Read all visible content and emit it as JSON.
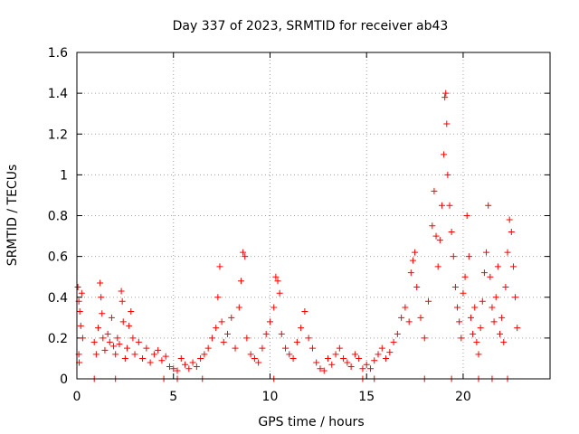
{
  "chart_data": {
    "type": "scatter",
    "title": "Day 337 of 2023, SRMTID for receiver ab43",
    "xlabel": "GPS time / hours",
    "ylabel": "SRMTID / TECUs",
    "xlim": [
      0,
      24.5
    ],
    "ylim": [
      0,
      1.6
    ],
    "xticks": [
      0,
      5,
      10,
      15,
      20
    ],
    "xtick_labels": [
      "0",
      "5",
      "10",
      "15",
      "20"
    ],
    "yticks": [
      0,
      0.2,
      0.4,
      0.6,
      0.8,
      1,
      1.2,
      1.4,
      1.6
    ],
    "ytick_labels": [
      "0",
      "0.2",
      "0.4",
      "0.6",
      "0.8",
      "1",
      "1.2",
      "1.4",
      "1.6"
    ],
    "grid": true,
    "marker": "plus",
    "color": "#ff0000",
    "series": [
      {
        "name": "SRMTID",
        "points": [
          [
            0.05,
            0.45
          ],
          [
            0.1,
            0.38
          ],
          [
            0.15,
            0.33
          ],
          [
            0.2,
            0.26
          ],
          [
            0.25,
            0.42
          ],
          [
            0.3,
            0.2
          ],
          [
            0.1,
            0.12
          ],
          [
            0.12,
            0.08
          ],
          [
            0.9,
            0.18
          ],
          [
            1.0,
            0.12
          ],
          [
            1.1,
            0.25
          ],
          [
            1.2,
            0.47
          ],
          [
            1.25,
            0.4
          ],
          [
            1.3,
            0.32
          ],
          [
            1.35,
            0.2
          ],
          [
            1.45,
            0.14
          ],
          [
            1.6,
            0.22
          ],
          [
            1.7,
            0.18
          ],
          [
            1.8,
            0.3
          ],
          [
            1.9,
            0.16
          ],
          [
            2.0,
            0.12
          ],
          [
            2.1,
            0.2
          ],
          [
            2.2,
            0.17
          ],
          [
            2.3,
            0.43
          ],
          [
            2.35,
            0.38
          ],
          [
            2.4,
            0.28
          ],
          [
            2.5,
            0.1
          ],
          [
            2.6,
            0.15
          ],
          [
            2.7,
            0.26
          ],
          [
            2.8,
            0.33
          ],
          [
            2.9,
            0.2
          ],
          [
            3.0,
            0.12
          ],
          [
            3.2,
            0.18
          ],
          [
            3.4,
            0.1
          ],
          [
            3.6,
            0.15
          ],
          [
            3.8,
            0.08
          ],
          [
            4.0,
            0.12
          ],
          [
            4.2,
            0.14
          ],
          [
            4.4,
            0.09
          ],
          [
            4.6,
            0.11
          ],
          [
            4.8,
            0.06
          ],
          [
            5.0,
            0.05
          ],
          [
            5.2,
            0.04
          ],
          [
            5.4,
            0.1
          ],
          [
            5.6,
            0.07
          ],
          [
            5.8,
            0.05
          ],
          [
            6.0,
            0.08
          ],
          [
            6.2,
            0.06
          ],
          [
            6.4,
            0.1
          ],
          [
            6.6,
            0.12
          ],
          [
            6.8,
            0.15
          ],
          [
            7.0,
            0.2
          ],
          [
            7.2,
            0.25
          ],
          [
            7.3,
            0.4
          ],
          [
            7.4,
            0.55
          ],
          [
            7.5,
            0.28
          ],
          [
            7.6,
            0.18
          ],
          [
            7.8,
            0.22
          ],
          [
            8.0,
            0.3
          ],
          [
            8.2,
            0.15
          ],
          [
            8.4,
            0.35
          ],
          [
            8.5,
            0.48
          ],
          [
            8.6,
            0.62
          ],
          [
            8.7,
            0.6
          ],
          [
            8.8,
            0.2
          ],
          [
            9.0,
            0.12
          ],
          [
            9.2,
            0.1
          ],
          [
            9.4,
            0.08
          ],
          [
            9.6,
            0.15
          ],
          [
            9.8,
            0.22
          ],
          [
            10.0,
            0.28
          ],
          [
            10.2,
            0.35
          ],
          [
            10.3,
            0.5
          ],
          [
            10.4,
            0.48
          ],
          [
            10.5,
            0.42
          ],
          [
            10.6,
            0.22
          ],
          [
            10.8,
            0.15
          ],
          [
            11.0,
            0.12
          ],
          [
            11.2,
            0.1
          ],
          [
            11.4,
            0.18
          ],
          [
            11.6,
            0.25
          ],
          [
            11.8,
            0.33
          ],
          [
            12.0,
            0.2
          ],
          [
            12.2,
            0.15
          ],
          [
            12.4,
            0.08
          ],
          [
            12.6,
            0.05
          ],
          [
            12.8,
            0.04
          ],
          [
            13.0,
            0.1
          ],
          [
            13.2,
            0.07
          ],
          [
            13.4,
            0.12
          ],
          [
            13.6,
            0.15
          ],
          [
            13.8,
            0.1
          ],
          [
            14.0,
            0.08
          ],
          [
            14.2,
            0.06
          ],
          [
            14.4,
            0.12
          ],
          [
            14.6,
            0.1
          ],
          [
            14.8,
            0.05
          ],
          [
            15.0,
            0.07
          ],
          [
            15.2,
            0.05
          ],
          [
            15.4,
            0.09
          ],
          [
            15.6,
            0.12
          ],
          [
            15.8,
            0.15
          ],
          [
            16.0,
            0.1
          ],
          [
            16.2,
            0.13
          ],
          [
            16.4,
            0.18
          ],
          [
            16.6,
            0.22
          ],
          [
            16.8,
            0.3
          ],
          [
            17.0,
            0.35
          ],
          [
            17.2,
            0.28
          ],
          [
            17.3,
            0.52
          ],
          [
            17.4,
            0.58
          ],
          [
            17.5,
            0.62
          ],
          [
            17.6,
            0.45
          ],
          [
            17.8,
            0.3
          ],
          [
            18.0,
            0.2
          ],
          [
            18.2,
            0.38
          ],
          [
            18.4,
            0.75
          ],
          [
            18.5,
            0.92
          ],
          [
            18.6,
            0.7
          ],
          [
            18.7,
            0.55
          ],
          [
            18.8,
            0.68
          ],
          [
            18.9,
            0.85
          ],
          [
            19.0,
            1.1
          ],
          [
            19.05,
            1.38
          ],
          [
            19.1,
            1.4
          ],
          [
            19.15,
            1.25
          ],
          [
            19.2,
            1.0
          ],
          [
            19.3,
            0.85
          ],
          [
            19.4,
            0.72
          ],
          [
            19.5,
            0.6
          ],
          [
            19.6,
            0.45
          ],
          [
            19.7,
            0.35
          ],
          [
            19.8,
            0.28
          ],
          [
            19.9,
            0.2
          ],
          [
            20.0,
            0.42
          ],
          [
            20.1,
            0.5
          ],
          [
            20.2,
            0.8
          ],
          [
            20.3,
            0.6
          ],
          [
            20.4,
            0.3
          ],
          [
            20.5,
            0.22
          ],
          [
            20.6,
            0.35
          ],
          [
            20.7,
            0.18
          ],
          [
            20.8,
            0.12
          ],
          [
            20.9,
            0.25
          ],
          [
            21.0,
            0.38
          ],
          [
            21.1,
            0.52
          ],
          [
            21.2,
            0.62
          ],
          [
            21.3,
            0.85
          ],
          [
            21.4,
            0.5
          ],
          [
            21.5,
            0.35
          ],
          [
            21.6,
            0.28
          ],
          [
            21.7,
            0.4
          ],
          [
            21.8,
            0.55
          ],
          [
            21.9,
            0.22
          ],
          [
            22.0,
            0.3
          ],
          [
            22.1,
            0.18
          ],
          [
            22.2,
            0.45
          ],
          [
            22.3,
            0.62
          ],
          [
            22.4,
            0.78
          ],
          [
            22.5,
            0.72
          ],
          [
            22.6,
            0.55
          ],
          [
            22.7,
            0.4
          ],
          [
            22.8,
            0.25
          ],
          [
            0.9,
            0.0
          ],
          [
            2.0,
            0.0
          ],
          [
            4.5,
            0.0
          ],
          [
            5.2,
            0.0
          ],
          [
            6.5,
            0.0
          ],
          [
            10.2,
            0.0
          ],
          [
            14.8,
            0.0
          ],
          [
            15.4,
            0.0
          ],
          [
            18.0,
            0.0
          ],
          [
            19.4,
            0.0
          ],
          [
            20.8,
            0.0
          ],
          [
            21.5,
            0.0
          ],
          [
            22.3,
            0.0
          ]
        ]
      }
    ]
  }
}
